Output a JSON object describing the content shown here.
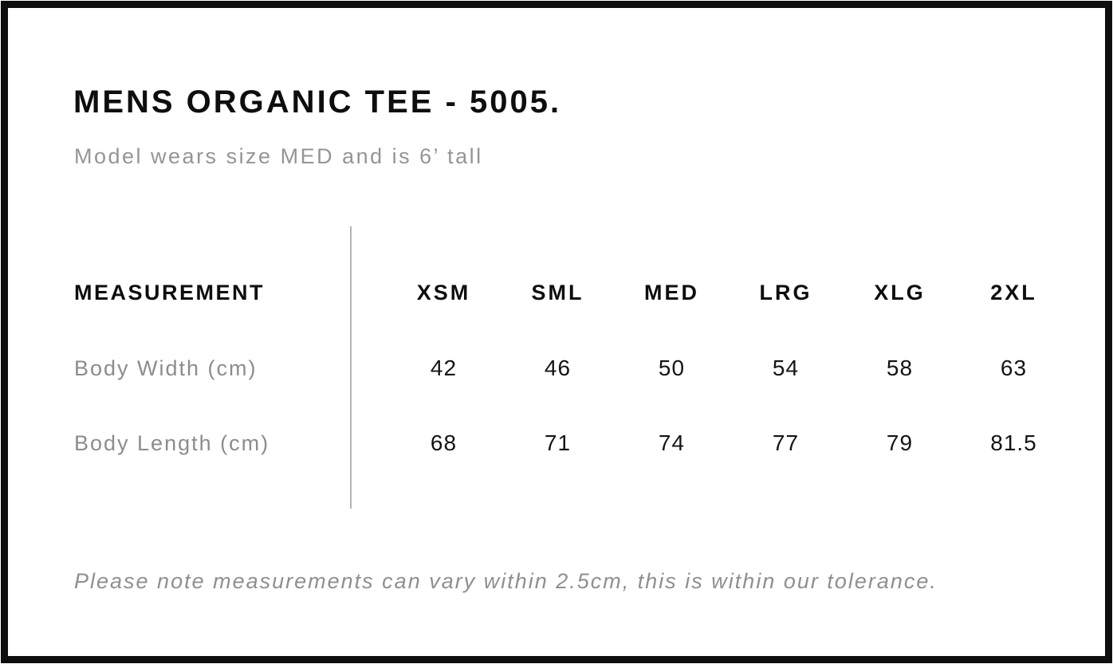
{
  "header": {
    "title": "MENS ORGANIC TEE - 5005.",
    "subtitle": "Model wears size MED and is 6’ tall"
  },
  "table": {
    "measurement_header": "MEASUREMENT",
    "sizes": [
      "XSM",
      "SML",
      "MED",
      "LRG",
      "XLG",
      "2XL"
    ],
    "rows": [
      {
        "label": "Body Width (cm)",
        "values": [
          "42",
          "46",
          "50",
          "54",
          "58",
          "63"
        ]
      },
      {
        "label": "Body Length (cm)",
        "values": [
          "68",
          "71",
          "74",
          "77",
          "79",
          "81.5"
        ]
      }
    ]
  },
  "footer": {
    "note": "Please note measurements can vary within 2.5cm, this is within our tolerance."
  },
  "colors": {
    "text_primary": "#0e0e0e",
    "text_muted": "#8f8f8f",
    "divider": "#b3b3b3",
    "frame": "#0e0e0e",
    "background": "#ffffff"
  },
  "chart_data": {
    "type": "table",
    "title": "MENS ORGANIC TEE - 5005.",
    "subtitle": "Model wears size MED and is 6’ tall",
    "columns": [
      "MEASUREMENT",
      "XSM",
      "SML",
      "MED",
      "LRG",
      "XLG",
      "2XL"
    ],
    "rows": [
      [
        "Body Width (cm)",
        42,
        46,
        50,
        54,
        58,
        63
      ],
      [
        "Body Length (cm)",
        68,
        71,
        74,
        77,
        79,
        81.5
      ]
    ],
    "note": "Please note measurements can vary within 2.5cm, this is within our tolerance."
  }
}
